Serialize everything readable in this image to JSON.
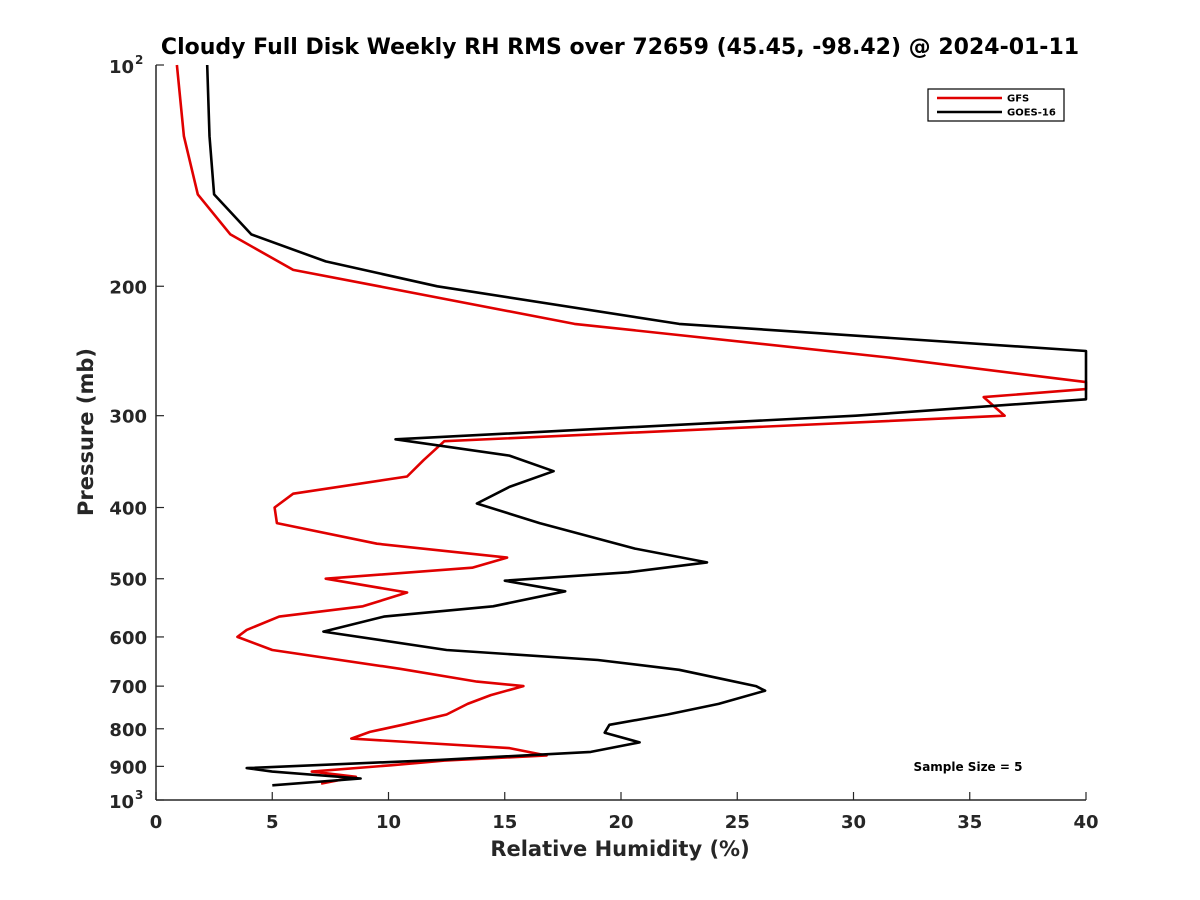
{
  "chart_data": {
    "type": "line",
    "title": "Cloudy Full Disk Weekly RH RMS over 72659 (45.45, -98.42) @ 2024-01-11",
    "xlabel": "Relative Humidity (%)",
    "ylabel": "Pressure (mb)",
    "xlim": [
      0,
      40
    ],
    "ylim": [
      100,
      1000
    ],
    "y_scale": "log",
    "y_reversed": true,
    "grid": false,
    "legend_position": "top-right",
    "x_ticks": [
      "0",
      "5",
      "10",
      "15",
      "20",
      "25",
      "30",
      "35",
      "40"
    ],
    "y_ticks": [
      {
        "value": 100,
        "label": "10",
        "sup": "2"
      },
      {
        "value": 200,
        "label": "200",
        "sup": ""
      },
      {
        "value": 300,
        "label": "300",
        "sup": ""
      },
      {
        "value": 400,
        "label": "400",
        "sup": ""
      },
      {
        "value": 500,
        "label": "500",
        "sup": ""
      },
      {
        "value": 600,
        "label": "600",
        "sup": ""
      },
      {
        "value": 700,
        "label": "700",
        "sup": ""
      },
      {
        "value": 800,
        "label": "800",
        "sup": ""
      },
      {
        "value": 900,
        "label": "900",
        "sup": ""
      },
      {
        "value": 1000,
        "label": "10",
        "sup": "3"
      }
    ],
    "series": [
      {
        "name": "GFS",
        "color": "#e00000",
        "points": [
          [
            0.9,
            100
          ],
          [
            1.2,
            125
          ],
          [
            1.8,
            150
          ],
          [
            3.2,
            170
          ],
          [
            5.9,
            190
          ],
          [
            9.6,
            200
          ],
          [
            18.0,
            225
          ],
          [
            31.5,
            250
          ],
          [
            40.0,
            270
          ],
          [
            40.0,
            276
          ],
          [
            35.6,
            283
          ],
          [
            36.5,
            300
          ],
          [
            12.4,
            325
          ],
          [
            11.5,
            345
          ],
          [
            10.8,
            363
          ],
          [
            5.9,
            383
          ],
          [
            5.1,
            400
          ],
          [
            5.2,
            420
          ],
          [
            9.5,
            448
          ],
          [
            15.1,
            468
          ],
          [
            13.6,
            483
          ],
          [
            7.3,
            500
          ],
          [
            10.8,
            522
          ],
          [
            8.9,
            545
          ],
          [
            5.3,
            563
          ],
          [
            3.9,
            587
          ],
          [
            3.5,
            600
          ],
          [
            5.0,
            625
          ],
          [
            10.5,
            663
          ],
          [
            13.8,
            690
          ],
          [
            15.8,
            700
          ],
          [
            14.4,
            720
          ],
          [
            13.4,
            740
          ],
          [
            12.5,
            765
          ],
          [
            10.6,
            790
          ],
          [
            9.2,
            808
          ],
          [
            8.4,
            825
          ],
          [
            15.2,
            850
          ],
          [
            16.8,
            870
          ],
          [
            12.4,
            884
          ],
          [
            10.1,
            897
          ],
          [
            6.7,
            915
          ],
          [
            8.6,
            930
          ],
          [
            7.1,
            950
          ]
        ]
      },
      {
        "name": "GOES-16",
        "color": "#000000",
        "points": [
          [
            2.2,
            100
          ],
          [
            2.3,
            125
          ],
          [
            2.5,
            150
          ],
          [
            4.1,
            170
          ],
          [
            7.3,
            185
          ],
          [
            12.1,
            200
          ],
          [
            22.5,
            225
          ],
          [
            40.0,
            245
          ],
          [
            40.0,
            285
          ],
          [
            30.1,
            300
          ],
          [
            10.3,
            323
          ],
          [
            15.2,
            340
          ],
          [
            17.1,
            357
          ],
          [
            15.2,
            375
          ],
          [
            13.8,
            395
          ],
          [
            16.5,
            420
          ],
          [
            20.6,
            455
          ],
          [
            23.7,
            475
          ],
          [
            20.3,
            490
          ],
          [
            15.0,
            503
          ],
          [
            17.6,
            520
          ],
          [
            14.5,
            545
          ],
          [
            9.8,
            563
          ],
          [
            7.2,
            590
          ],
          [
            12.5,
            625
          ],
          [
            19.0,
            645
          ],
          [
            22.5,
            665
          ],
          [
            24.4,
            685
          ],
          [
            25.8,
            700
          ],
          [
            26.2,
            710
          ],
          [
            24.2,
            740
          ],
          [
            22.0,
            765
          ],
          [
            19.5,
            790
          ],
          [
            19.3,
            810
          ],
          [
            20.8,
            835
          ],
          [
            18.7,
            860
          ],
          [
            12.2,
            882
          ],
          [
            3.9,
            905
          ],
          [
            5.0,
            915
          ],
          [
            8.8,
            935
          ],
          [
            5.0,
            955
          ]
        ]
      }
    ],
    "annotation": "Sample Size = 5"
  }
}
